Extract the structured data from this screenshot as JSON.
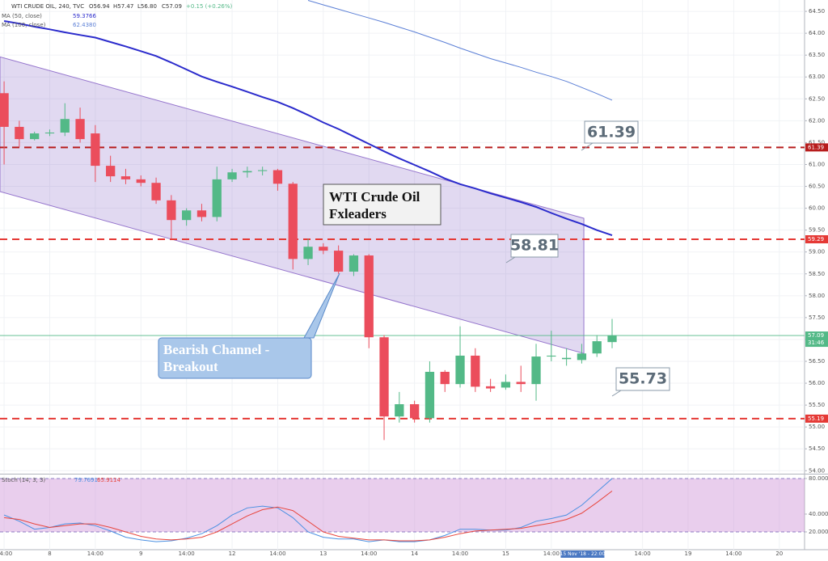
{
  "chart_data": {
    "type": "candlestick",
    "title": "WTI CRUDE OIL, 240, TVC",
    "ohlc_labels": [
      "O56.94",
      "H57.47",
      "L56.80",
      "C57.09",
      "+0.15 (+0.26%)"
    ],
    "open": [
      62.63,
      61.86,
      61.58,
      61.71,
      61.73,
      62.04,
      61.71,
      60.97,
      60.73,
      60.66,
      60.58,
      60.18,
      59.73,
      59.95,
      59.8,
      60.66,
      60.82,
      60.85,
      60.87,
      60.56,
      58.84,
      59.12,
      59.03,
      58.55,
      58.92,
      57.05,
      55.24,
      55.52,
      55.2,
      56.26,
      55.98,
      56.63,
      55.93,
      55.9,
      56.03,
      55.98,
      56.61,
      56.55,
      56.53,
      56.68,
      56.94
    ],
    "high": [
      62.9,
      62.0,
      61.75,
      61.8,
      62.4,
      62.3,
      61.9,
      61.2,
      60.9,
      60.75,
      60.7,
      60.3,
      60.0,
      60.1,
      60.95,
      60.9,
      60.95,
      60.95,
      60.9,
      60.6,
      59.3,
      59.2,
      59.15,
      58.95,
      58.95,
      57.1,
      55.8,
      55.6,
      56.5,
      56.3,
      57.3,
      56.8,
      56.1,
      56.2,
      56.4,
      56.9,
      57.2,
      56.8,
      56.9,
      57.1,
      57.47
    ],
    "low": [
      61.0,
      61.4,
      61.55,
      61.65,
      61.65,
      61.5,
      60.6,
      60.6,
      60.55,
      60.5,
      60.1,
      59.3,
      59.6,
      59.7,
      59.7,
      60.6,
      60.7,
      60.75,
      60.4,
      58.6,
      58.7,
      58.95,
      58.5,
      58.45,
      56.8,
      54.7,
      55.1,
      55.1,
      55.1,
      55.8,
      55.9,
      55.8,
      55.8,
      55.85,
      55.8,
      55.6,
      56.5,
      56.4,
      56.45,
      56.6,
      56.8
    ],
    "close": [
      61.86,
      61.58,
      61.71,
      61.73,
      62.04,
      61.58,
      60.97,
      60.73,
      60.66,
      60.58,
      60.18,
      59.73,
      59.95,
      59.8,
      60.66,
      60.82,
      60.85,
      60.87,
      60.56,
      58.84,
      59.12,
      59.03,
      58.55,
      58.92,
      57.05,
      55.24,
      55.52,
      55.2,
      56.26,
      55.98,
      56.63,
      55.92,
      55.88,
      56.03,
      55.98,
      56.61,
      56.63,
      56.58,
      56.68,
      56.96,
      57.09
    ],
    "up_color": "#53b987",
    "down_color": "#eb4d5c",
    "xlim": [
      -0.27,
      52.66
    ],
    "xticks": [
      {
        "value": 0,
        "label": "14:00"
      },
      {
        "value": 3,
        "label": "8"
      },
      {
        "value": 6,
        "label": "14:00"
      },
      {
        "value": 9,
        "label": "9"
      },
      {
        "value": 12,
        "label": "14:00"
      },
      {
        "value": 15,
        "label": "12"
      },
      {
        "value": 18,
        "label": "14:00"
      },
      {
        "value": 21,
        "label": "13"
      },
      {
        "value": 24,
        "label": "14:00"
      },
      {
        "value": 27,
        "label": "14"
      },
      {
        "value": 30,
        "label": "14:00"
      },
      {
        "value": 33,
        "label": "15"
      },
      {
        "value": 36,
        "label": "14:00"
      },
      {
        "value": 42,
        "label": "14:00"
      },
      {
        "value": 45,
        "label": "19"
      },
      {
        "value": 48,
        "label": "14:00"
      },
      {
        "value": 51,
        "label": "20"
      }
    ],
    "ylim": [
      53.95,
      64.76
    ],
    "yticks": [
      {
        "value": 54,
        "label": "54.00"
      },
      {
        "value": 54.5,
        "label": "54.50"
      },
      {
        "value": 55,
        "label": "55.00"
      },
      {
        "value": 55.5,
        "label": "55.50"
      },
      {
        "value": 56,
        "label": "56.00"
      },
      {
        "value": 56.5,
        "label": "56.50"
      },
      {
        "value": 57,
        "label": "57.00"
      },
      {
        "value": 57.5,
        "label": "57.50"
      },
      {
        "value": 58,
        "label": "58.00"
      },
      {
        "value": 58.5,
        "label": "58.50"
      },
      {
        "value": 59,
        "label": "59.00"
      },
      {
        "value": 59.5,
        "label": "59.50"
      },
      {
        "value": 60,
        "label": "60.00"
      },
      {
        "value": 60.5,
        "label": "60.50"
      },
      {
        "value": 61,
        "label": "61.00"
      },
      {
        "value": 61.5,
        "label": "61.50"
      },
      {
        "value": 62,
        "label": "62.00"
      },
      {
        "value": 62.5,
        "label": "62.50"
      },
      {
        "value": 63,
        "label": "63.00"
      },
      {
        "value": 63.5,
        "label": "63.50"
      },
      {
        "value": 64,
        "label": "64.00"
      },
      {
        "value": 64.5,
        "label": "64.50"
      }
    ],
    "grid": true,
    "moving_averages": [
      {
        "name": "MA (50, close)",
        "value_label": "59.3766",
        "color": "#2b2bcc",
        "values": [
          64.28,
          64.22,
          64.15,
          64.09,
          64.02,
          63.96,
          63.9,
          63.8,
          63.7,
          63.59,
          63.48,
          63.33,
          63.17,
          63.01,
          62.89,
          62.78,
          62.66,
          62.54,
          62.43,
          62.29,
          62.13,
          61.96,
          61.81,
          61.64,
          61.47,
          61.3,
          61.14,
          60.99,
          60.84,
          60.68,
          60.55,
          60.45,
          60.34,
          60.24,
          60.14,
          60.03,
          59.89,
          59.76,
          59.64,
          59.5,
          59.38
        ]
      },
      {
        "name": "MA (100, close)",
        "value_label": "62.4380",
        "color": "#5b7fd6",
        "values": [
          null,
          null,
          null,
          null,
          null,
          null,
          null,
          null,
          null,
          null,
          null,
          null,
          null,
          null,
          null,
          null,
          null,
          null,
          null,
          null,
          64.75,
          64.65,
          64.55,
          64.45,
          64.35,
          64.25,
          64.14,
          64.03,
          63.91,
          63.79,
          63.66,
          63.54,
          63.42,
          63.32,
          63.22,
          63.11,
          63.01,
          62.9,
          62.76,
          62.62,
          62.47
        ]
      }
    ],
    "channel": {
      "x": [
        -0.27,
        38.14
      ],
      "upper": [
        63.46,
        59.77
      ],
      "lower": [
        60.38,
        56.68
      ],
      "color": "#9575cd"
    },
    "levels": [
      {
        "value": 61.39,
        "label": "61.39",
        "color": "#b71c1c"
      },
      {
        "value": 59.29,
        "label": "59.29",
        "color": "#e53935"
      },
      {
        "value": 55.19,
        "label": "55.19",
        "color": "#e53935"
      }
    ],
    "last_price": {
      "value": 57.09,
      "label": "57.09",
      "countdown": "31:46",
      "color": "#53b987"
    },
    "crosshair": {
      "value": 38,
      "label": "15 Nov '18 - 22:00"
    },
    "callouts": [
      {
        "text": "61.39"
      },
      {
        "text": "58.81"
      },
      {
        "text": "55.73"
      }
    ],
    "notes": [
      {
        "lines": [
          "WTI Crude Oil",
          "Fxleaders"
        ]
      },
      {
        "lines": [
          "Bearish Channel -",
          "Breakout"
        ]
      }
    ],
    "oscillator": {
      "name": "Stoch (14, 3, 3)",
      "ylim": [
        0,
        83.6
      ],
      "yticks": [
        {
          "value": 20,
          "label": "20.0000"
        },
        {
          "value": 40,
          "label": "40.0000"
        },
        {
          "value": 80,
          "label": "80.0000"
        }
      ],
      "band": [
        20,
        80
      ],
      "series": [
        {
          "value_label": "79.7691",
          "color": "#4a90e2",
          "values": [
            39,
            32,
            23,
            25,
            29,
            30,
            27,
            21,
            14,
            11,
            9,
            10,
            13,
            18,
            27,
            39,
            47,
            49,
            47,
            36,
            20,
            14,
            12,
            12,
            9,
            11,
            9,
            9,
            11,
            16,
            23,
            23,
            22,
            22,
            25,
            32,
            35,
            39,
            50,
            65,
            80
          ]
        },
        {
          "value_label": "65.9114",
          "color": "#e8453c",
          "values": [
            36,
            34,
            29,
            25,
            27,
            29,
            29,
            25,
            20,
            15,
            12,
            11,
            12,
            14,
            20,
            29,
            38,
            45,
            48,
            44,
            32,
            20,
            15,
            13,
            11,
            11,
            10,
            10,
            11,
            14,
            18,
            21,
            22,
            23,
            24,
            27,
            30,
            34,
            41,
            53,
            66
          ]
        }
      ]
    }
  }
}
